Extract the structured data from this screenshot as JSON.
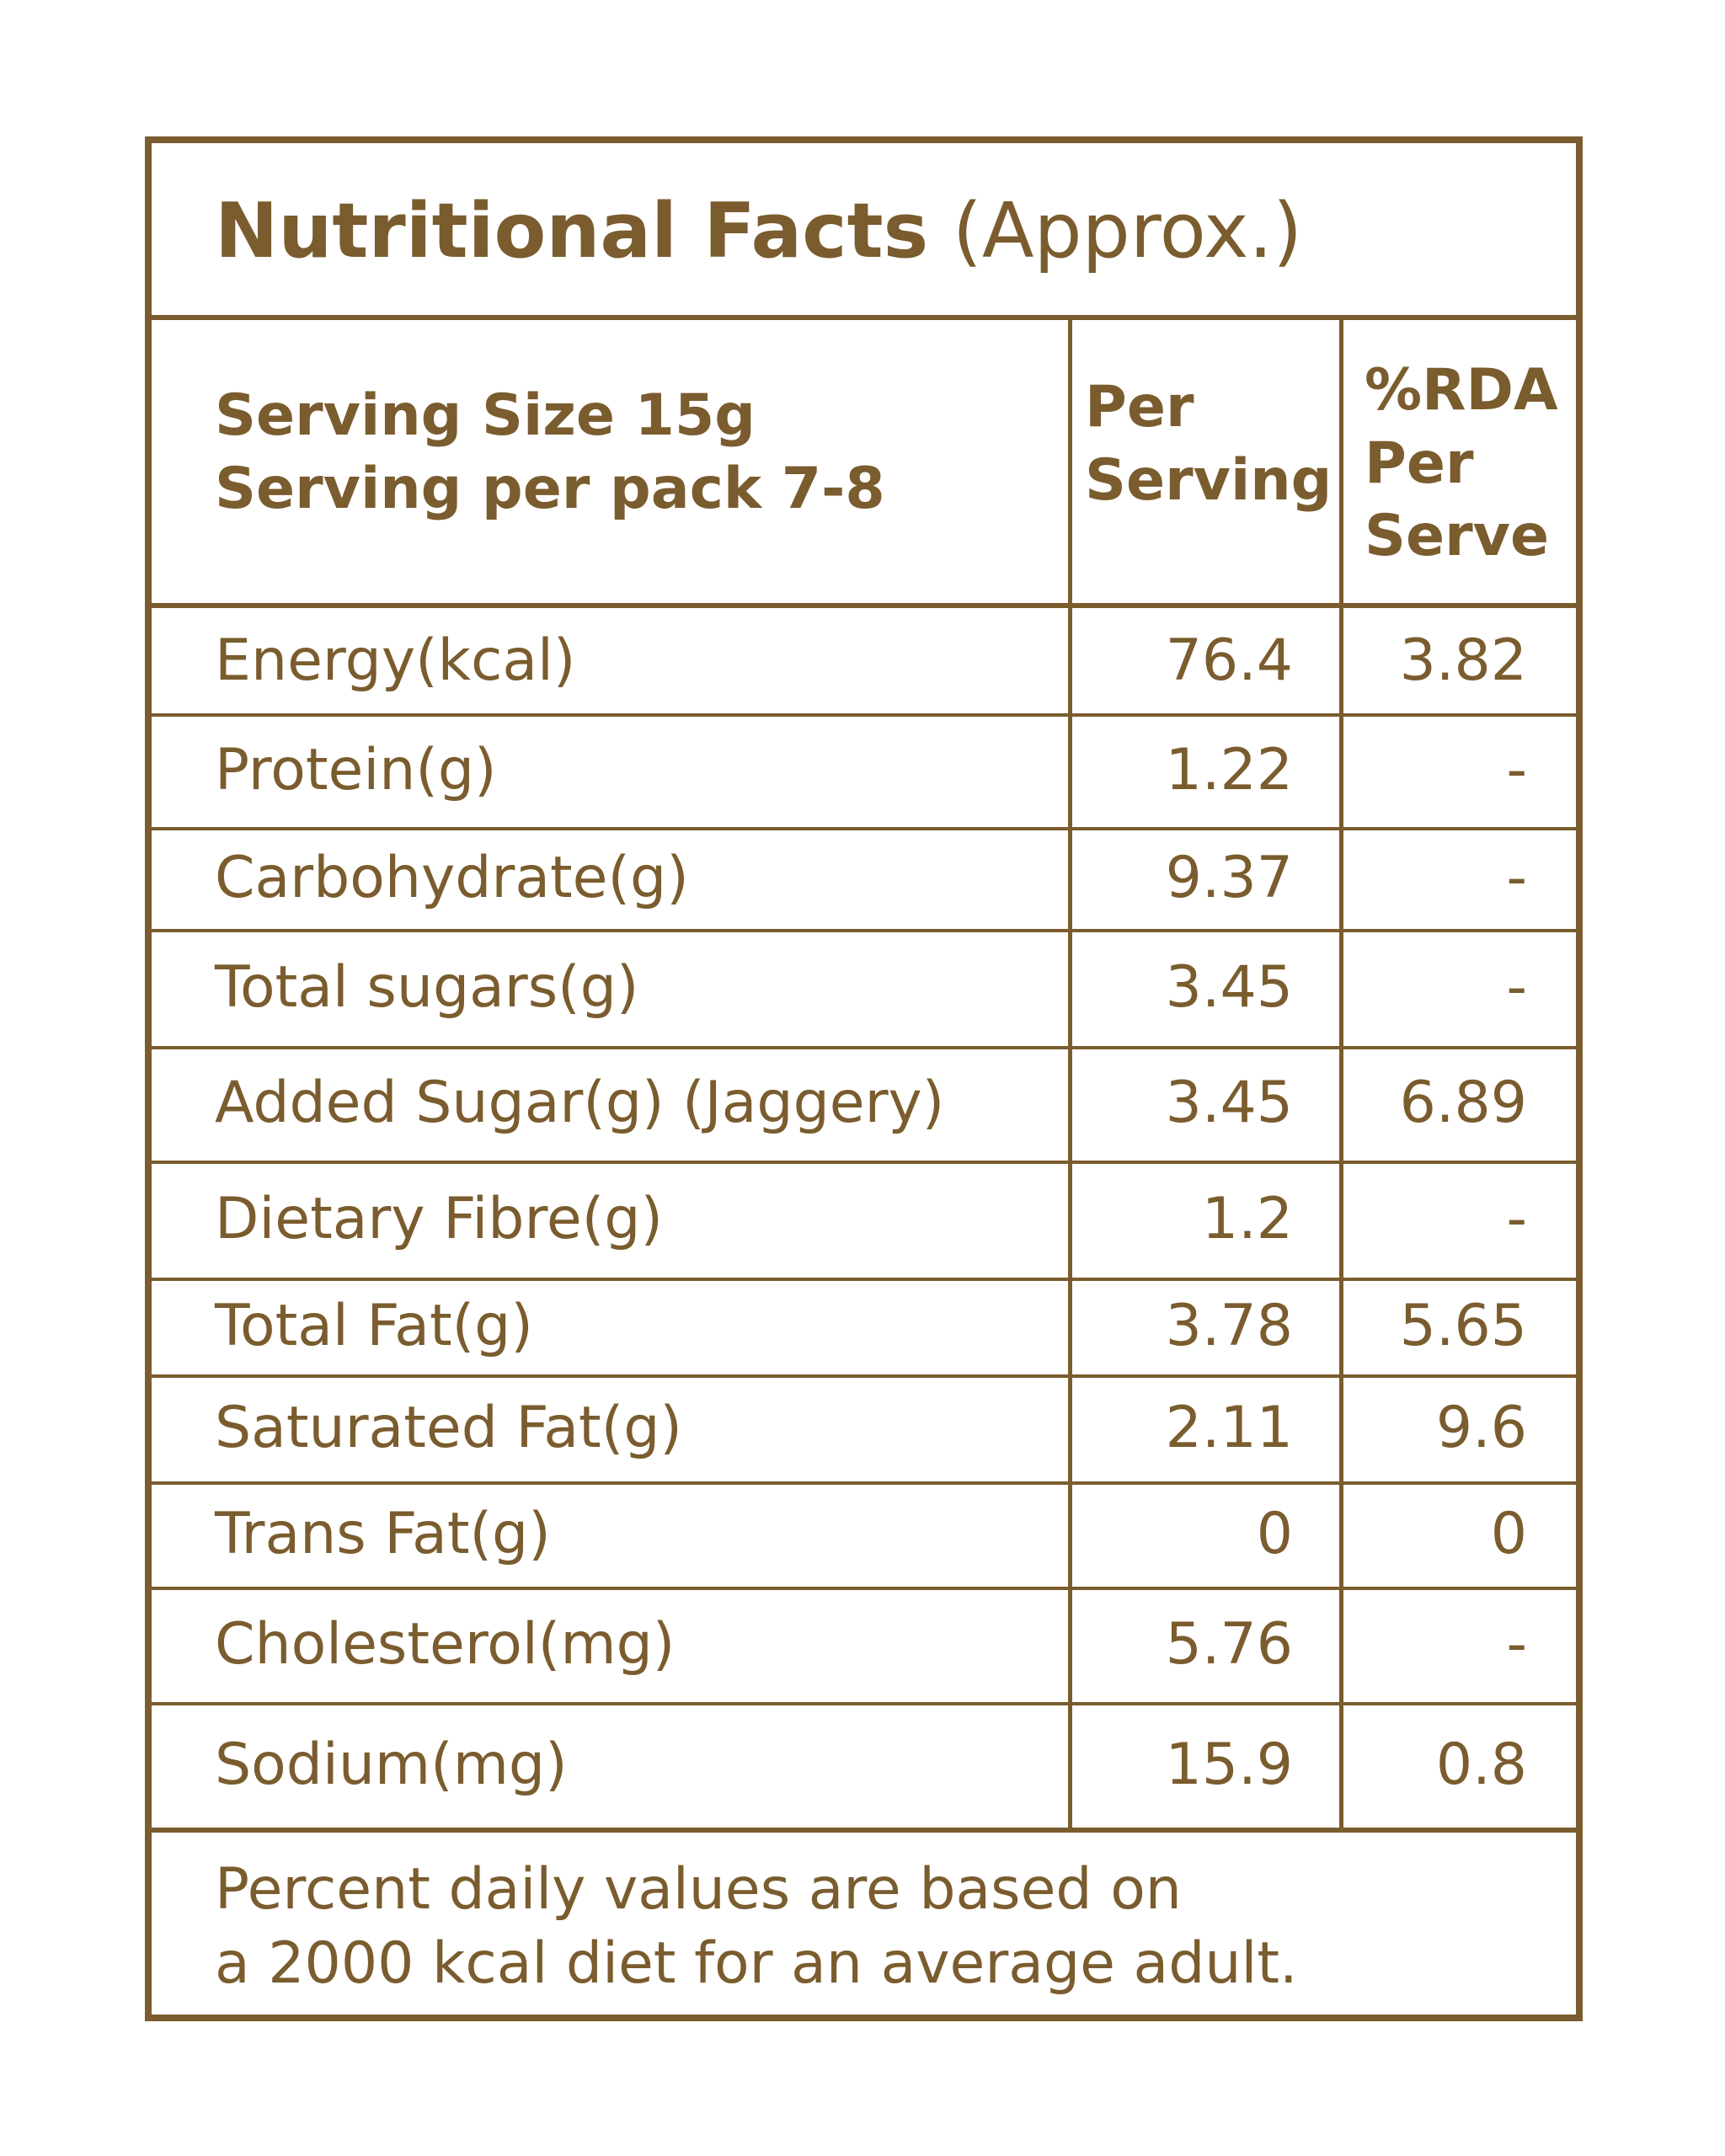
{
  "title": {
    "bold": "Nutritional Facts",
    "light": "(Approx.)"
  },
  "header": {
    "serving_size": "Serving Size 15g",
    "serving_per_pack": "Serving per pack 7-8",
    "col_per_serving_1": "Per",
    "col_per_serving_2": "Serving",
    "col_rda_1": "%RDA",
    "col_rda_2": "Per",
    "col_rda_3": "Serve"
  },
  "rows": [
    {
      "name": "Energy(kcal)",
      "per_serving": "76.4",
      "rda": "3.82"
    },
    {
      "name": "Protein(g)",
      "per_serving": "1.22",
      "rda": "-"
    },
    {
      "name": "Carbohydrate(g)",
      "per_serving": "9.37",
      "rda": "-"
    },
    {
      "name": "Total sugars(g)",
      "per_serving": "3.45",
      "rda": "-"
    },
    {
      "name": "Added Sugar(g) (Jaggery)",
      "per_serving": "3.45",
      "rda": "6.89"
    },
    {
      "name": "Dietary Fibre(g)",
      "per_serving": "1.2",
      "rda": "-"
    },
    {
      "name": "Total Fat(g)",
      "per_serving": "3.78",
      "rda": "5.65"
    },
    {
      "name": "Saturated Fat(g)",
      "per_serving": "2.11",
      "rda": "9.6"
    },
    {
      "name": "Trans Fat(g)",
      "per_serving": "0",
      "rda": "0"
    },
    {
      "name": "Cholesterol(mg)",
      "per_serving": "5.76",
      "rda": "-"
    },
    {
      "name": "Sodium(mg)",
      "per_serving": "15.9",
      "rda": "0.8"
    }
  ],
  "footer": {
    "line1": "Percent daily values are based on",
    "line2": "a 2000 kcal diet for an average adult."
  },
  "colors": {
    "accent": "#7a5c2e",
    "background": "#ffffff"
  }
}
